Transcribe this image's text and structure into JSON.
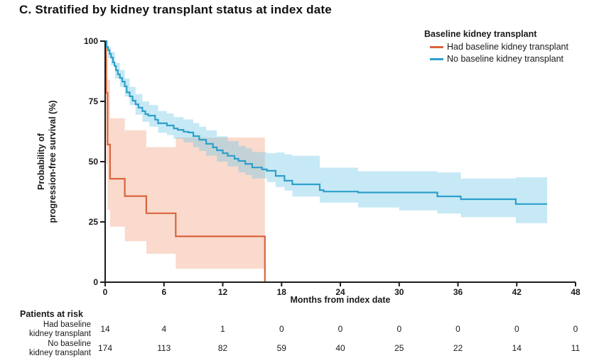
{
  "figure_title": "C. Stratified by kidney transplant status at index date",
  "chart_data": {
    "type": "line",
    "subtype": "kaplan-meier-step-with-ci",
    "xlabel": "Months from index date",
    "ylabel_lines": [
      "Probability of",
      "progression-free survival (%)"
    ],
    "xlim": [
      0,
      48
    ],
    "ylim": [
      0,
      100
    ],
    "xticks": [
      0,
      6,
      12,
      18,
      24,
      30,
      36,
      42,
      48
    ],
    "yticks": [
      0,
      25,
      50,
      75,
      100
    ],
    "grid": false,
    "axis_color": "#1c1c1c",
    "legend": {
      "title": "Baseline kidney transplant",
      "position": "top-right",
      "entries": [
        {
          "label": "Had baseline kidney transplant",
          "color": "#d8653e"
        },
        {
          "label": "No baseline kidney transplant",
          "color": "#2e9fcb"
        }
      ]
    },
    "series": [
      {
        "name": "Had baseline kidney transplant",
        "color": "#d8653e",
        "band_color": "rgba(238,134,88,0.30)",
        "end_time": 16.3,
        "steps": [
          [
            0,
            100
          ],
          [
            0.1,
            78.6
          ],
          [
            0.25,
            57.1
          ],
          [
            0.5,
            42.9
          ],
          [
            2.0,
            35.7
          ],
          [
            4.2,
            28.6
          ],
          [
            7.2,
            19.0
          ],
          [
            16.3,
            0
          ]
        ],
        "ci": [
          [
            0.1,
            49,
            94
          ],
          [
            0.25,
            30,
            84
          ],
          [
            0.5,
            23,
            68
          ],
          [
            2.0,
            17,
            63
          ],
          [
            4.2,
            11.8,
            56
          ],
          [
            7.2,
            5.6,
            60
          ]
        ]
      },
      {
        "name": "No baseline kidney transplant",
        "color": "#2e9fcb",
        "band_color": "rgba(105,196,229,0.38)",
        "end_time": 45.1,
        "steps": [
          [
            0,
            100
          ],
          [
            0.15,
            97.6
          ],
          [
            0.3,
            96.2
          ],
          [
            0.45,
            94.7
          ],
          [
            0.6,
            93.2
          ],
          [
            0.8,
            91.2
          ],
          [
            0.95,
            89.7
          ],
          [
            1.1,
            87.9
          ],
          [
            1.3,
            86.2
          ],
          [
            1.5,
            84.7
          ],
          [
            1.75,
            83.2
          ],
          [
            2.0,
            81.2
          ],
          [
            2.2,
            78.8
          ],
          [
            2.5,
            77.1
          ],
          [
            2.8,
            75.3
          ],
          [
            3.1,
            73.8
          ],
          [
            3.4,
            72.4
          ],
          [
            3.8,
            70.9
          ],
          [
            4.1,
            69.7
          ],
          [
            4.4,
            69.1
          ],
          [
            5.1,
            67.4
          ],
          [
            5.4,
            65.9
          ],
          [
            6.3,
            65.0
          ],
          [
            7.0,
            63.8
          ],
          [
            7.4,
            63.2
          ],
          [
            8.0,
            62.4
          ],
          [
            8.5,
            62.1
          ],
          [
            9.0,
            60.6
          ],
          [
            9.6,
            59.1
          ],
          [
            10.3,
            57.4
          ],
          [
            11.0,
            55.9
          ],
          [
            11.4,
            54.7
          ],
          [
            12.0,
            53.5
          ],
          [
            12.5,
            52.4
          ],
          [
            13.2,
            51.2
          ],
          [
            13.6,
            50.3
          ],
          [
            14.3,
            49.1
          ],
          [
            15.0,
            47.6
          ],
          [
            16.0,
            46.8
          ],
          [
            16.5,
            46.2
          ],
          [
            17.4,
            44.1
          ],
          [
            18.3,
            42.1
          ],
          [
            19.1,
            40.6
          ],
          [
            21.9,
            38.2
          ],
          [
            22.3,
            37.6
          ],
          [
            25.8,
            37.2
          ],
          [
            33.9,
            35.6
          ],
          [
            36.3,
            34.4
          ],
          [
            41.9,
            32.4
          ]
        ],
        "ci": [
          [
            0.3,
            93.0,
            97.5
          ],
          [
            0.6,
            90.0,
            95.5
          ],
          [
            1.0,
            84.5,
            91.0
          ],
          [
            1.5,
            81.0,
            88.0
          ],
          [
            2.0,
            77.0,
            84.5
          ],
          [
            2.5,
            73.5,
            81.0
          ],
          [
            3.1,
            69.5,
            78.0
          ],
          [
            3.8,
            66.5,
            75.0
          ],
          [
            4.5,
            64.5,
            73.5
          ],
          [
            5.4,
            62.0,
            71.0
          ],
          [
            6.3,
            61.0,
            70.0
          ],
          [
            7.0,
            59.5,
            68.5
          ],
          [
            8.0,
            58.0,
            67.5
          ],
          [
            9.0,
            56.0,
            66.0
          ],
          [
            9.6,
            54.5,
            64.5
          ],
          [
            10.3,
            52.5,
            63.0
          ],
          [
            11.4,
            50.0,
            60.5
          ],
          [
            12.5,
            48.0,
            58.5
          ],
          [
            13.6,
            45.5,
            56.5
          ],
          [
            14.3,
            44.5,
            55.5
          ],
          [
            15.0,
            43.0,
            54.0
          ],
          [
            16.5,
            41.5,
            53.5
          ],
          [
            17.4,
            39.5,
            53.8
          ],
          [
            18.3,
            38.0,
            53.0
          ],
          [
            19.1,
            35.5,
            52.4
          ],
          [
            21.9,
            33.0,
            47.5
          ],
          [
            25.8,
            31.0,
            46.0
          ],
          [
            30.0,
            29.8,
            46.0
          ],
          [
            33.9,
            28.5,
            45.5
          ],
          [
            36.3,
            27.0,
            43.0
          ],
          [
            41.9,
            24.5,
            43.5
          ]
        ]
      }
    ],
    "risk_table": {
      "title": "Patients at risk",
      "times": [
        0,
        6,
        12,
        18,
        24,
        30,
        36,
        42,
        48
      ],
      "rows": [
        {
          "label_lines": [
            "Had baseline",
            "kidney transplant"
          ],
          "counts": [
            14,
            4,
            1,
            0,
            0,
            0,
            0,
            0,
            0
          ]
        },
        {
          "label_lines": [
            "No baseline",
            "kidney transplant"
          ],
          "counts": [
            174,
            113,
            82,
            59,
            40,
            25,
            22,
            14,
            11
          ]
        }
      ]
    }
  }
}
